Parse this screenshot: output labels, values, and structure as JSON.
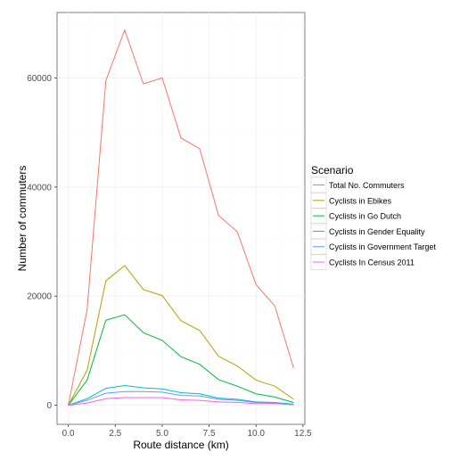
{
  "chart_data": {
    "type": "line",
    "xlabel": "Route distance (km)",
    "ylabel": "Number of commuters",
    "xlim": [
      -0.6,
      12.6
    ],
    "ylim": [
      -3500,
      72000
    ],
    "x_ticks": [
      0.0,
      2.5,
      5.0,
      7.5,
      10.0,
      12.5
    ],
    "x_tick_labels": [
      "0.0",
      "2.5",
      "5.0",
      "7.5",
      "10.0",
      "12.5"
    ],
    "y_ticks": [
      0,
      20000,
      40000,
      60000
    ],
    "y_tick_labels": [
      "0",
      "20000",
      "40000",
      "60000"
    ],
    "grid": true,
    "legend": {
      "title": "Scenario",
      "position": "right"
    },
    "x": [
      0,
      1,
      2,
      3,
      4,
      5,
      6,
      7,
      8,
      9,
      10,
      11,
      12
    ],
    "series": [
      {
        "name": "Total No. Commuters",
        "color": "#F8766D",
        "values": [
          0,
          17500,
          59500,
          68800,
          58900,
          60000,
          49000,
          47000,
          34800,
          31800,
          22100,
          18200,
          6800
        ]
      },
      {
        "name": "Cyclists in Ebikes",
        "color": "#B79F00",
        "values": [
          0,
          6400,
          22800,
          25600,
          21200,
          20100,
          15500,
          13700,
          9000,
          7200,
          4600,
          3500,
          1100
        ]
      },
      {
        "name": "Cyclists in Go Dutch",
        "color": "#00BA38",
        "values": [
          0,
          4600,
          15600,
          16600,
          13300,
          11900,
          8900,
          7500,
          4700,
          3500,
          2100,
          1500,
          500
        ]
      },
      {
        "name": "Cyclists in Gender Equality",
        "color": "#00BFC4",
        "values": [
          0,
          1200,
          3100,
          3600,
          3200,
          3000,
          2300,
          2100,
          1300,
          1100,
          600,
          500,
          200
        ]
      },
      {
        "name": "Cyclists in Government Target",
        "color": "#619CFF",
        "values": [
          0,
          900,
          2200,
          2500,
          2500,
          2400,
          1800,
          1700,
          1100,
          900,
          500,
          400,
          100
        ]
      },
      {
        "name": "Cyclists In Census 2011",
        "color": "#F564E3",
        "values": [
          0,
          400,
          1200,
          1400,
          1400,
          1400,
          1000,
          900,
          600,
          500,
          300,
          300,
          100
        ]
      }
    ]
  }
}
